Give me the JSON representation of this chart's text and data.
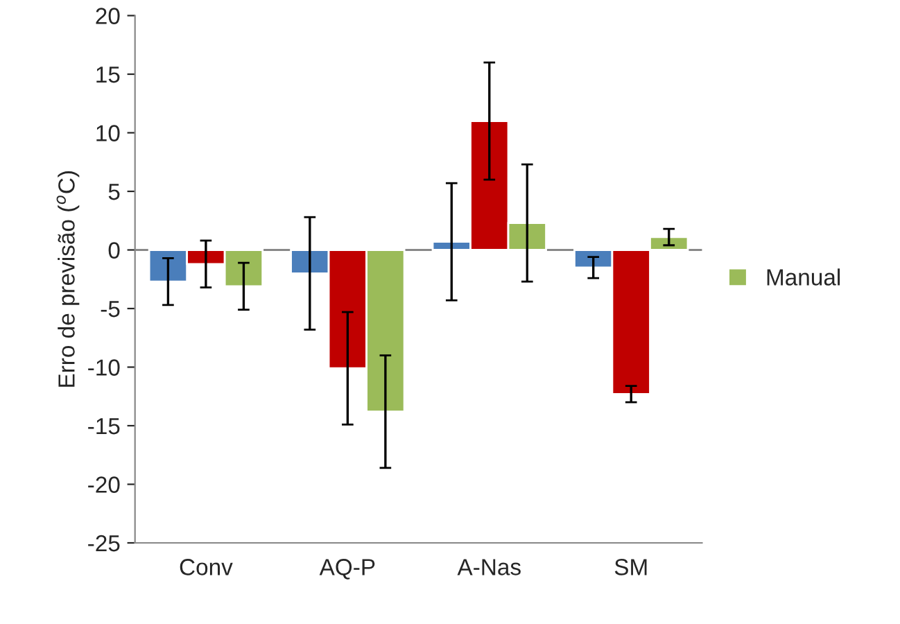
{
  "chart_data": {
    "type": "bar",
    "ylabel": "Erro de previsão ($^{o}$C)",
    "categories": [
      "Conv",
      "AQ-P",
      "A-Nas",
      "SM"
    ],
    "series": [
      {
        "color": "#4a7ebb",
        "values": [
          -2.7,
          -2.0,
          0.7,
          -1.5
        ],
        "errors": [
          2.0,
          4.8,
          5.0,
          0.9
        ]
      },
      {
        "color": "#c00000",
        "values": [
          -1.2,
          -10.1,
          11.0,
          -12.3
        ],
        "errors": [
          2.0,
          4.8,
          5.0,
          0.7
        ]
      },
      {
        "name": "Manual",
        "color": "#9bbb59",
        "values": [
          -3.1,
          -13.8,
          2.3,
          1.1
        ],
        "errors": [
          2.0,
          4.8,
          5.0,
          0.7
        ]
      }
    ],
    "ylim": [
      -25,
      20
    ],
    "yticks": [
      -25,
      -20,
      -15,
      -10,
      -5,
      0,
      5,
      10,
      15,
      20
    ],
    "ref_lines": [
      {
        "axis": "y",
        "value": 0,
        "color": "#888888"
      }
    ],
    "grid": false,
    "legend": "right"
  }
}
